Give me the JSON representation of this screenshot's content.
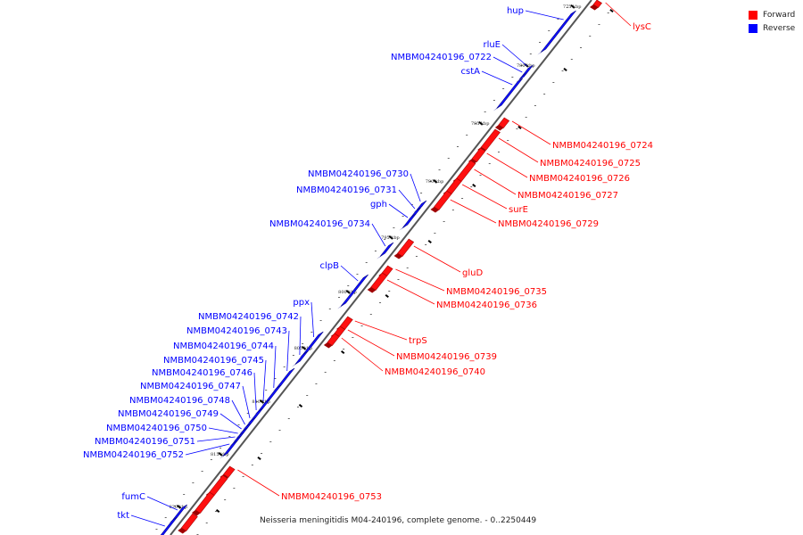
{
  "legend": [
    {
      "label": "Forward",
      "color": "#ff0000"
    },
    {
      "label": "Reverse",
      "color": "#0000ff"
    }
  ],
  "caption": "Neisseria meningitidis M04-240196, complete genome. - 0..2250449",
  "kbp_ticks": [
    "775 kbp",
    "780 kbp",
    "785 kbp",
    "790 kbp",
    "795 kbp",
    "800 kbp",
    "805 kbp",
    "810 kbp",
    "815 kbp",
    "820 kbp"
  ],
  "reverse_genes": [
    "hup",
    "rluE",
    "NMBM04240196_0722",
    "cstA",
    "NMBM04240196_0730",
    "NMBM04240196_0731",
    "gph",
    "NMBM04240196_0734",
    "clpB",
    "ppx",
    "NMBM04240196_0742",
    "NMBM04240196_0743",
    "NMBM04240196_0744",
    "NMBM04240196_0745",
    "NMBM04240196_0746",
    "NMBM04240196_0747",
    "NMBM04240196_0748",
    "NMBM04240196_0749",
    "NMBM04240196_0750",
    "NMBM04240196_0751",
    "NMBM04240196_0752",
    "fumC",
    "tkt"
  ],
  "forward_genes": [
    "lysC",
    "NMBM04240196_0724",
    "NMBM04240196_0725",
    "NMBM04240196_0726",
    "NMBM04240196_0727",
    "surE",
    "NMBM04240196_0729",
    "gluD",
    "NMBM04240196_0735",
    "NMBM04240196_0736",
    "trpS",
    "NMBM04240196_0739",
    "NMBM04240196_0740",
    "NMBM04240196_0753"
  ]
}
